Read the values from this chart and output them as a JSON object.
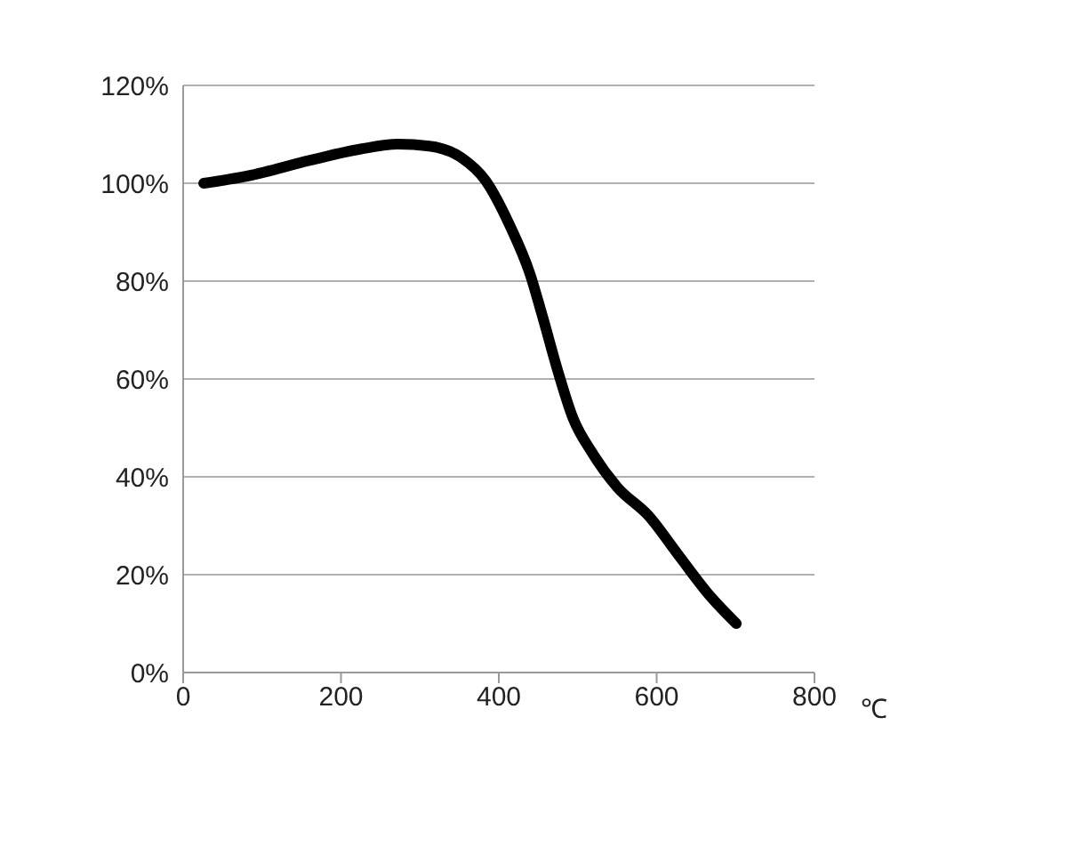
{
  "chart_data": {
    "type": "line",
    "xlabel": "℃",
    "x": [
      26,
      82,
      161,
      225,
      272,
      312,
      352,
      383,
      415,
      439,
      455,
      475,
      494,
      518,
      550,
      590,
      629,
      669,
      701
    ],
    "series": [
      {
        "color": "#000000",
        "values": [
          100,
          101.5,
          104.7,
          107,
          108,
          107.6,
          105.3,
          100.6,
          91,
          81.7,
          73,
          61.5,
          52,
          45,
          37.9,
          32,
          23.7,
          15.4,
          10
        ]
      }
    ],
    "xlim": [
      0,
      800
    ],
    "xticks": [
      0,
      200,
      400,
      600,
      800
    ],
    "ylim": [
      0,
      120
    ],
    "yticks": [
      {
        "value": 0,
        "label": "0%"
      },
      {
        "value": 20,
        "label": "20%"
      },
      {
        "value": 40,
        "label": "40%"
      },
      {
        "value": 60,
        "label": "60%"
      },
      {
        "value": 80,
        "label": "80%"
      },
      {
        "value": 100,
        "label": "100%"
      },
      {
        "value": 120,
        "label": "120%"
      }
    ],
    "grid": "y",
    "marker": "none",
    "line_style": "solid"
  }
}
